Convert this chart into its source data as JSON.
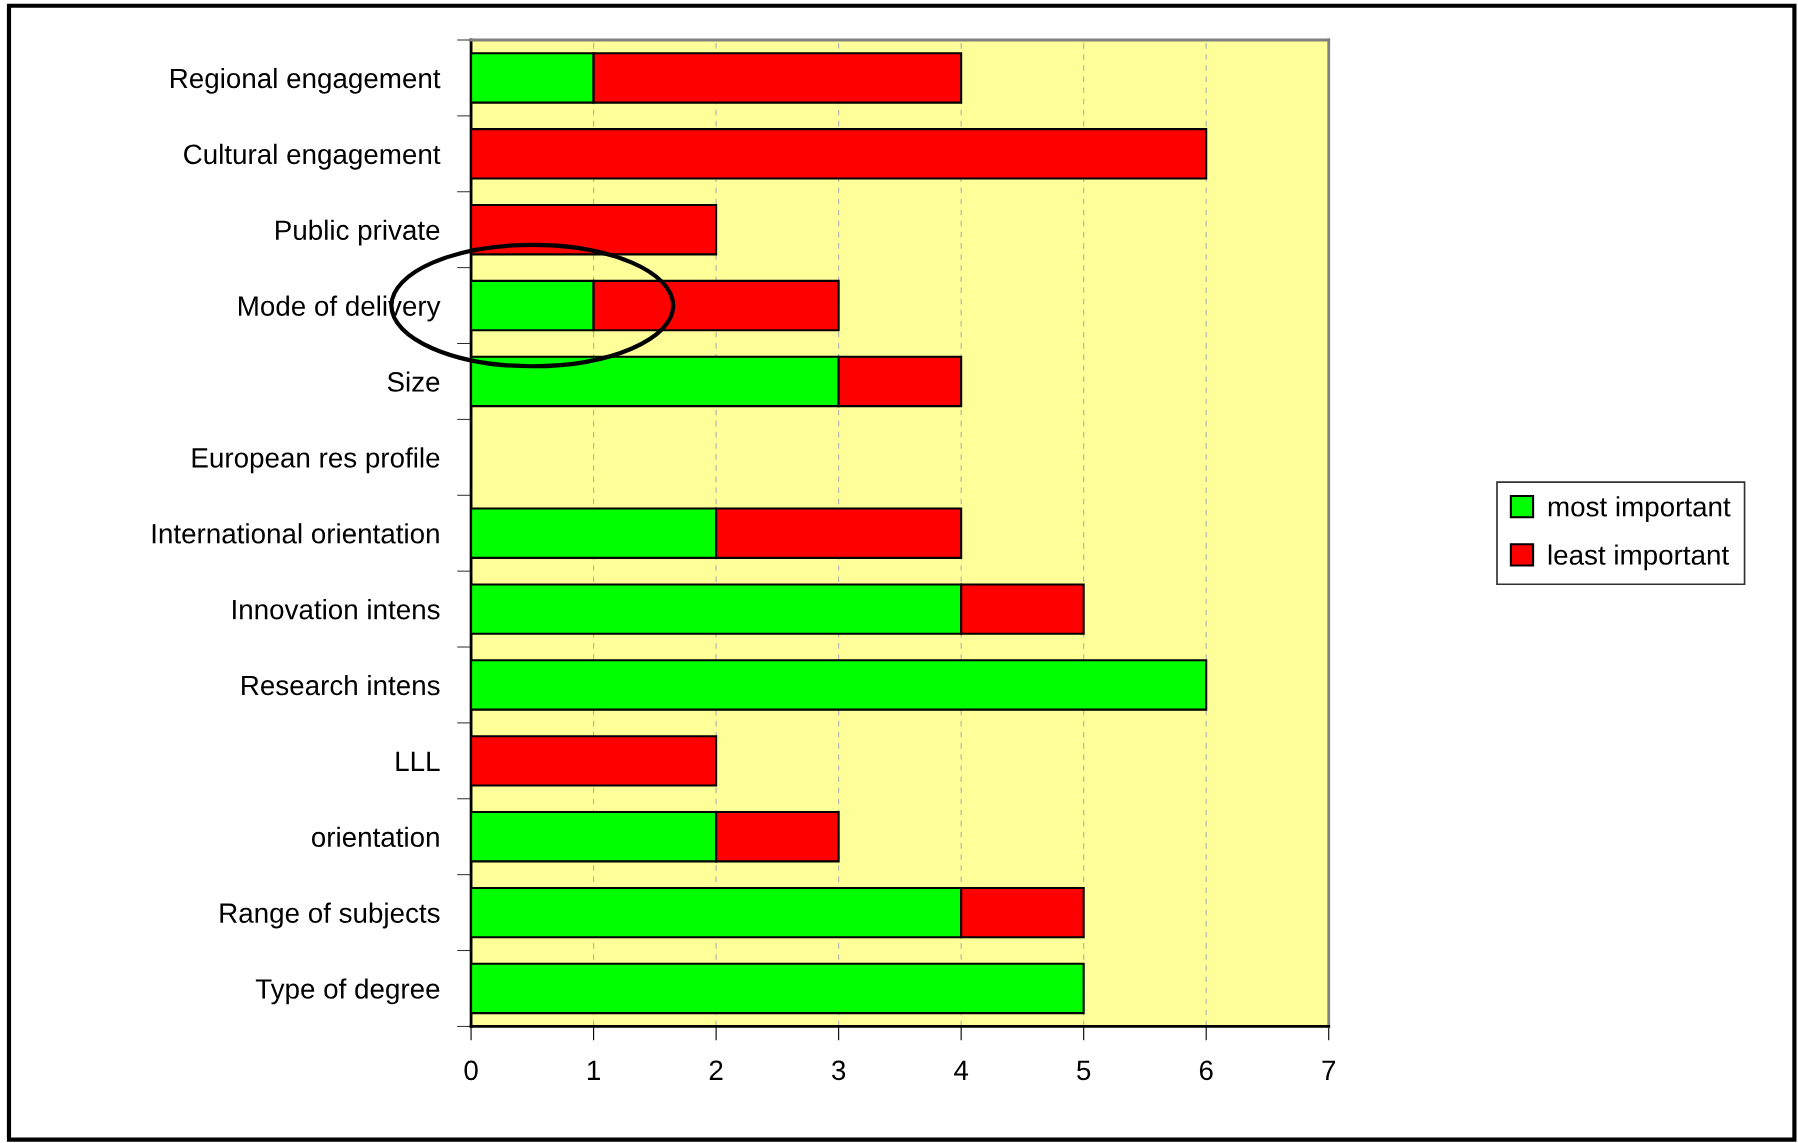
{
  "chart_data": {
    "type": "bar",
    "orientation": "horizontal",
    "stacked": true,
    "categories": [
      "Regional engagement",
      "Cultural engagement",
      "Public private",
      "Mode of delivery",
      "Size",
      "European res profile",
      "International orientation",
      "Innovation intens",
      "Research intens",
      "LLL",
      "orientation",
      "Range of subjects",
      "Type of degree"
    ],
    "series": [
      {
        "name": "most important",
        "color": "#00ff00",
        "values": [
          1,
          0,
          0,
          1,
          3,
          0,
          2,
          4,
          6,
          0,
          2,
          4,
          5
        ]
      },
      {
        "name": "least important",
        "color": "#ff0000",
        "values": [
          3,
          6,
          2,
          2,
          1,
          0,
          2,
          1,
          0,
          2,
          1,
          1,
          0
        ]
      }
    ],
    "xlim": [
      0,
      7
    ],
    "xticks": [
      0,
      1,
      2,
      3,
      4,
      5,
      6,
      7
    ],
    "grid": "x",
    "legend": "right"
  }
}
